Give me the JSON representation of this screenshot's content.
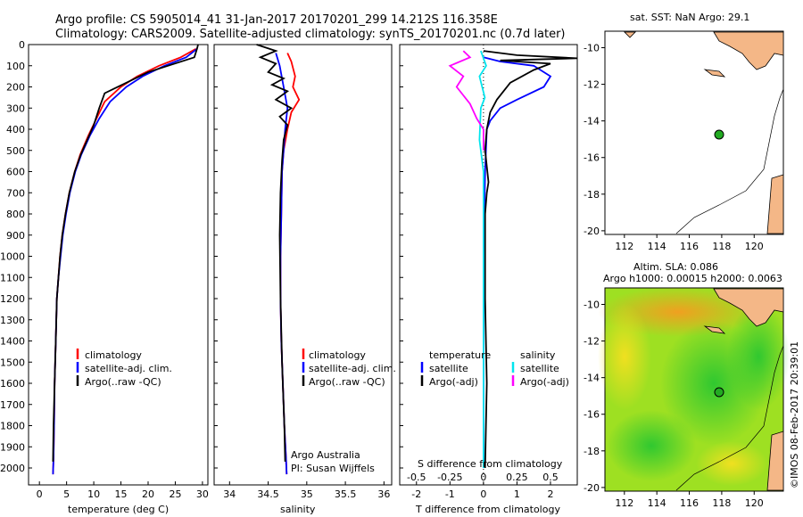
{
  "title_line1": "Argo profile: CS 5905014_41 31-Jan-2017 20170201_299 14.212S 116.358E",
  "title_line2": "Climatology: CARS2009. Satellite-adjusted climatology: synTS_20170201.nc (0.7d later)",
  "depth_ticks": [
    "0",
    "100",
    "200",
    "300",
    "400",
    "500",
    "600",
    "700",
    "800",
    "900",
    "1000",
    "1100",
    "1200",
    "1300",
    "1400",
    "1500",
    "1600",
    "1700",
    "1800",
    "1900",
    "2000"
  ],
  "colors": {
    "climatology": "#ff0000",
    "satellite": "#0000ff",
    "argo": "#000000",
    "salinity_sat": "#00e5ee",
    "salinity_argo": "#ff00ff"
  },
  "temp_panel": {
    "xlabel": "temperature (deg C)",
    "xticks": [
      "0",
      "5",
      "10",
      "15",
      "20",
      "25",
      "30"
    ],
    "legend": [
      "climatology",
      "satellite-adj. clim.",
      "Argo(..raw -QC)"
    ]
  },
  "sal_panel": {
    "xlabel": "salinity",
    "xticks": [
      "34",
      "34.5",
      "35",
      "35.5",
      "36"
    ],
    "legend": [
      "climatology",
      "satellite-adj. clim.",
      "Argo(..raw -QC)"
    ],
    "note1": "Argo Australia",
    "note2": "PI: Susan Wijffels"
  },
  "diff_panel": {
    "xlabel": "T difference from climatology",
    "top_label": "S difference from climatology",
    "t_ticks": [
      "-2",
      "-1",
      "0",
      "1",
      "2"
    ],
    "s_ticks": [
      "-0.5",
      "-0.25",
      "0",
      "0.25",
      "0.5"
    ],
    "leg_temp_title": "temperature",
    "leg_sal_title": "salinity",
    "leg_sat": "satellite",
    "leg_argo": "Argo(-adj)"
  },
  "map1": {
    "title": "sat. SST: NaN Argo: 29.1",
    "yticks": [
      "-10",
      "-12",
      "-14",
      "-16",
      "-18",
      "-20"
    ],
    "xticks": [
      "112",
      "114",
      "116",
      "118",
      "120"
    ]
  },
  "map2": {
    "title1": "Altim. SLA: 0.086",
    "title2": "Argo h1000: 0.00015 h2000: 0.0063",
    "yticks": [
      "-10",
      "-12",
      "-14",
      "-16",
      "-18",
      "-20"
    ],
    "xticks": [
      "112",
      "114",
      "116",
      "118",
      "120"
    ]
  },
  "side_label": "©IMOS 08-Feb-2017 20:39:01",
  "chart_data": [
    {
      "type": "line",
      "xlabel": "temperature (deg C)",
      "ylabel": "",
      "xlim": [
        -2,
        31
      ],
      "ylim": [
        2080,
        0
      ],
      "series": [
        {
          "name": "climatology",
          "x": [
            28.8,
            26,
            22,
            18,
            15,
            12,
            10.5,
            9,
            7.5,
            6.5,
            5.5,
            4.8,
            4.2,
            3.8,
            3.5,
            3.2,
            3.0,
            2.8,
            2.7,
            2.6,
            2.5
          ],
          "y": [
            20,
            60,
            100,
            150,
            200,
            270,
            350,
            430,
            520,
            600,
            700,
            800,
            900,
            1000,
            1100,
            1200,
            1400,
            1600,
            1800,
            1950,
            2030
          ]
        },
        {
          "name": "satellite-adj. clim.",
          "x": [
            29,
            27,
            23,
            19,
            16,
            13,
            11,
            9.3,
            7.7,
            6.6,
            5.6,
            4.9,
            4.3,
            3.9,
            3.5,
            3.2,
            3.0,
            2.8,
            2.7,
            2.6,
            2.5
          ],
          "y": [
            20,
            60,
            100,
            150,
            200,
            270,
            350,
            430,
            520,
            600,
            700,
            800,
            900,
            1000,
            1100,
            1200,
            1400,
            1600,
            1800,
            1950,
            2030
          ]
        },
        {
          "name": "Argo(..raw -QC)",
          "x": [
            29.2,
            29,
            28.5,
            20,
            16,
            12,
            11,
            10,
            7.6,
            6.5,
            5.5,
            4.8,
            4.2,
            3.8,
            3.5,
            3.2,
            3.0,
            2.8,
            2.6,
            2.5
          ],
          "y": [
            0,
            20,
            60,
            130,
            180,
            230,
            300,
            380,
            520,
            600,
            700,
            800,
            900,
            1000,
            1100,
            1200,
            1400,
            1600,
            1800,
            1970
          ]
        }
      ]
    },
    {
      "type": "line",
      "xlabel": "salinity",
      "ylabel": "",
      "xlim": [
        33.8,
        36.1
      ],
      "ylim": [
        2080,
        0
      ],
      "series": [
        {
          "name": "climatology",
          "x": [
            34.75,
            34.8,
            34.85,
            34.82,
            34.9,
            34.8,
            34.75,
            34.7,
            34.68,
            34.67,
            34.66,
            34.66,
            34.67,
            34.69,
            34.71,
            34.73,
            34.74
          ],
          "y": [
            40,
            80,
            150,
            200,
            260,
            320,
            400,
            500,
            600,
            800,
            1000,
            1200,
            1400,
            1600,
            1800,
            1950,
            2030
          ]
        },
        {
          "name": "satellite-adj. clim.",
          "x": [
            34.6,
            34.65,
            34.7,
            34.75,
            34.72,
            34.7,
            34.68,
            34.67,
            34.66,
            34.66,
            34.67,
            34.69,
            34.71,
            34.73,
            34.74
          ],
          "y": [
            40,
            100,
            200,
            300,
            400,
            500,
            600,
            800,
            1000,
            1200,
            1400,
            1600,
            1800,
            1950,
            2030
          ]
        },
        {
          "name": "Argo(..raw -QC)",
          "x": [
            34.35,
            34.6,
            34.4,
            34.6,
            34.5,
            34.7,
            34.55,
            34.75,
            34.6,
            34.8,
            34.65,
            34.75,
            34.7,
            34.68,
            34.66,
            34.65,
            34.66,
            34.68,
            34.71,
            34.72
          ],
          "y": [
            0,
            30,
            60,
            90,
            130,
            160,
            190,
            220,
            260,
            300,
            340,
            380,
            450,
            550,
            700,
            900,
            1200,
            1500,
            1800,
            1970
          ]
        }
      ]
    },
    {
      "type": "line",
      "xlabel": "T difference from climatology",
      "ylabel": "",
      "xlim": [
        -2.5,
        2.8
      ],
      "ylim": [
        2080,
        0
      ],
      "series": [
        {
          "name": "satellite",
          "x": [
            0,
            0.5,
            1.5,
            2,
            1.8,
            1,
            0.5,
            0.2,
            0.1,
            0.05,
            0,
            0,
            0
          ],
          "y": [
            60,
            80,
            100,
            150,
            200,
            260,
            300,
            360,
            400,
            600,
            1000,
            1500,
            2000
          ]
        },
        {
          "name": "Argo(-adj)",
          "x": [
            0,
            1,
            2.8,
            0.5,
            2,
            1.5,
            0.8,
            0.4,
            0.2,
            0.1,
            0.05,
            0.15,
            0.1,
            0.05,
            0.05,
            0.1,
            0.05
          ],
          "y": [
            30,
            50,
            65,
            75,
            90,
            120,
            180,
            260,
            320,
            400,
            500,
            650,
            700,
            800,
            1200,
            1600,
            2000
          ]
        },
        {
          "name": "salinity satellite",
          "x": [
            -0.02,
            0.02,
            -0.03,
            0.01,
            -0.02,
            -0.03,
            0,
            0,
            0
          ],
          "y": [
            30,
            100,
            150,
            250,
            300,
            450,
            600,
            1000,
            2000
          ]
        },
        {
          "name": "salinity Argo(-adj)",
          "x": [
            -0.15,
            -0.1,
            -0.25,
            -0.15,
            -0.2,
            -0.1,
            -0.05,
            0,
            0
          ],
          "y": [
            30,
            60,
            100,
            150,
            200,
            280,
            350,
            400,
            500
          ]
        }
      ]
    }
  ]
}
